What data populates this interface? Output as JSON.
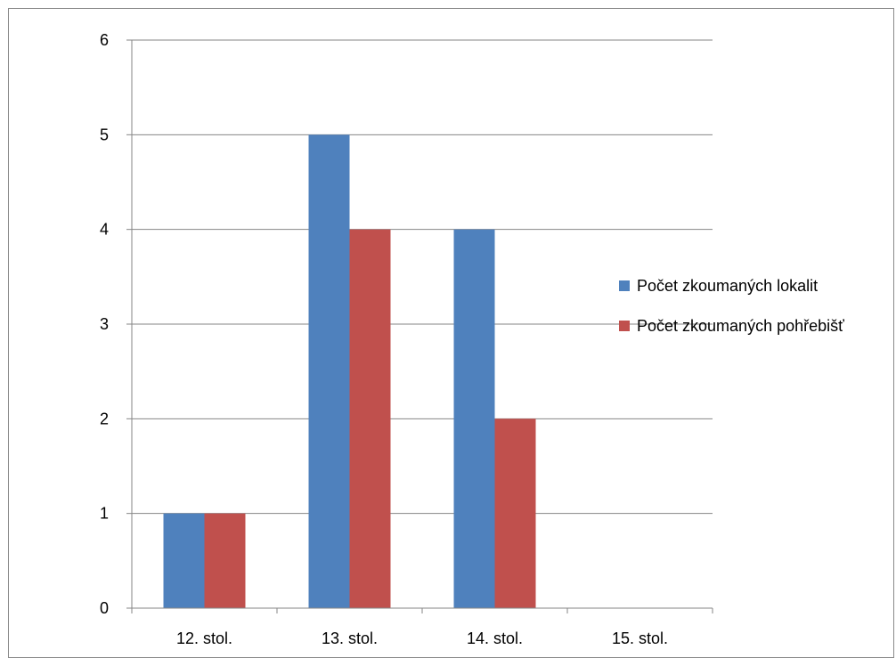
{
  "chart_data": {
    "type": "bar",
    "categories": [
      "12. stol.",
      "13. stol.",
      "14. stol.",
      "15. stol."
    ],
    "series": [
      {
        "name": "Počet zkoumaných lokalit",
        "values": [
          1,
          5,
          4,
          0
        ],
        "color": "#4f81bd"
      },
      {
        "name": "Počet zkoumaných pohřebišť",
        "values": [
          1,
          4,
          2,
          0
        ],
        "color": "#c0504d"
      }
    ],
    "yticks": [
      0,
      1,
      2,
      3,
      4,
      5,
      6
    ],
    "ylim": [
      0,
      6
    ],
    "grid": true,
    "legend_position": "right",
    "title": "",
    "xlabel": "",
    "ylabel": ""
  }
}
